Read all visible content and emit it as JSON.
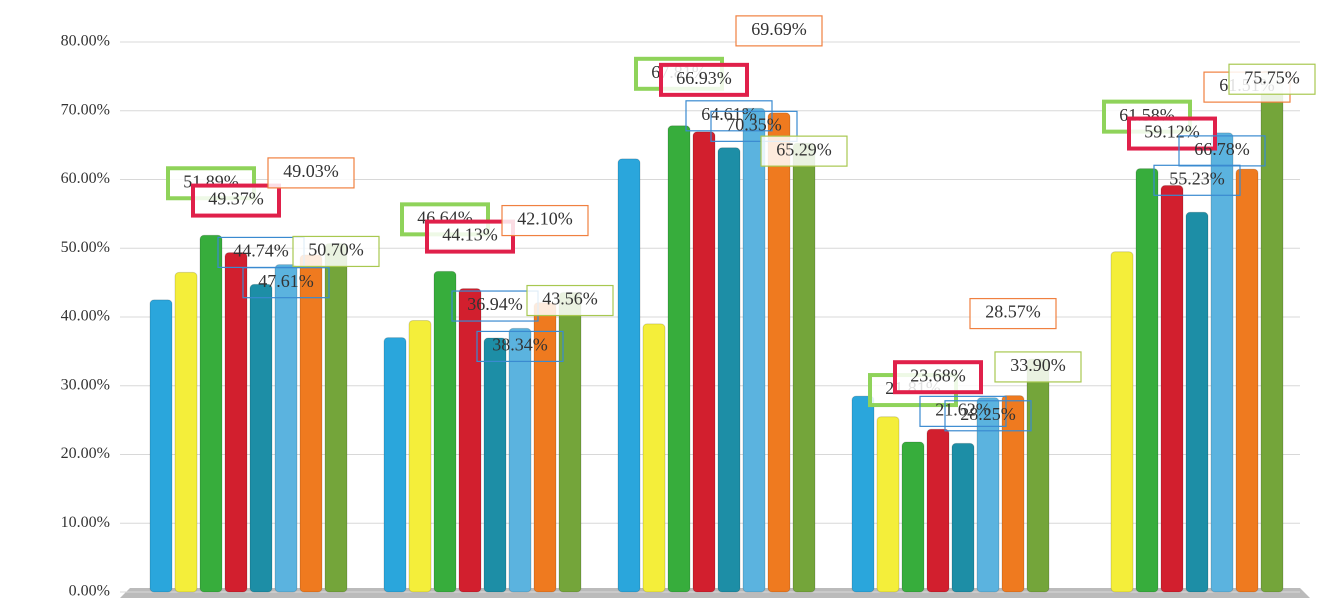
{
  "chart_data": {
    "type": "bar",
    "categories": [
      null,
      null,
      null,
      null,
      null
    ],
    "ylim": [
      0,
      80
    ],
    "yticks": [
      {
        "value": 0,
        "label": "0.00%"
      },
      {
        "value": 10,
        "label": "10.00%"
      },
      {
        "value": 20,
        "label": "20.00%"
      },
      {
        "value": 30,
        "label": "30.00%"
      },
      {
        "value": 40,
        "label": "40.00%"
      },
      {
        "value": 50,
        "label": "50.00%"
      },
      {
        "value": 60,
        "label": "60.00%"
      },
      {
        "value": 70,
        "label": "70.00%"
      },
      {
        "value": 80,
        "label": "80.00%"
      }
    ],
    "grid": true,
    "series": [
      {
        "color": "#2aa6dc",
        "values": [
          42.5,
          37,
          63,
          28.5,
          null
        ],
        "value_labels": [
          null,
          null,
          null,
          null,
          null
        ]
      },
      {
        "color": "#f4ee3a",
        "values": [
          46.5,
          39.5,
          39,
          25.5,
          49.5
        ],
        "value_labels": [
          null,
          null,
          null,
          null,
          null
        ]
      },
      {
        "color": "#37ad3c",
        "values": [
          51.89,
          46.64,
          67.81,
          21.81,
          61.58
        ],
        "value_labels": [
          "51.89%",
          "46.64%",
          "67.81%",
          "21.81%",
          "61.58%"
        ]
      },
      {
        "color": "#d21f2e",
        "values": [
          49.37,
          44.13,
          66.93,
          23.68,
          59.12
        ],
        "value_labels": [
          "49.37%",
          "44.13%",
          "66.93%",
          "23.68%",
          "59.12%"
        ]
      },
      {
        "color": "#1d8ea6",
        "values": [
          44.74,
          36.94,
          64.61,
          21.62,
          55.23
        ],
        "value_labels": [
          "44.74%",
          "36.94%",
          "64.61%",
          "21.62%",
          "55.23%"
        ]
      },
      {
        "color": "#5bb3df",
        "values": [
          47.61,
          38.34,
          70.35,
          28.25,
          66.78
        ],
        "value_labels": [
          "47.61%",
          "38.34%",
          "70.35%",
          "28.25%",
          "66.78%"
        ]
      },
      {
        "color": "#ef7a1f",
        "values": [
          49.03,
          42.1,
          69.69,
          28.57,
          61.51
        ],
        "value_labels": [
          "49.03%",
          "42.10%",
          "69.69%",
          "28.57%",
          "61.51%"
        ]
      },
      {
        "color": "#74a53a",
        "values": [
          50.7,
          43.56,
          65.29,
          33.9,
          75.75
        ],
        "value_labels": [
          "50.70%",
          "43.56%",
          "65.29%",
          "33.90%",
          "75.75%"
        ]
      }
    ]
  }
}
